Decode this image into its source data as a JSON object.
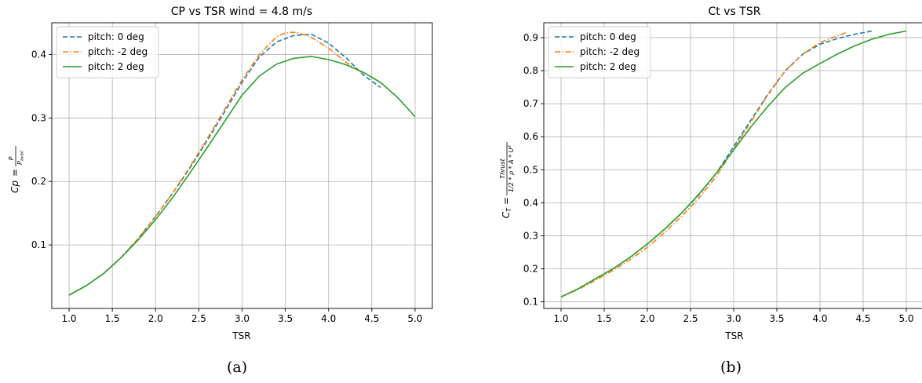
{
  "chart_data": [
    {
      "type": "line",
      "title": "CP vs TSR wind = 4.8 m/s",
      "xlabel": "TSR",
      "ylabel": "Cp = P / P_avail",
      "ylabel_lhs": "Cp",
      "ylabel_num": "P",
      "ylabel_den": "P",
      "ylabel_den_sub": "avail",
      "xlim": [
        0.8,
        5.2
      ],
      "ylim": [
        0.0,
        0.45
      ],
      "xticks": [
        1.0,
        1.5,
        2.0,
        2.5,
        3.0,
        3.5,
        4.0,
        4.5,
        5.0
      ],
      "xtick_labels": [
        "1.0",
        "1.5",
        "2.0",
        "2.5",
        "3.0",
        "3.5",
        "4.0",
        "4.5",
        "5.0"
      ],
      "yticks": [
        0.1,
        0.2,
        0.3,
        0.4
      ],
      "ytick_labels": [
        "0.1",
        "0.2",
        "0.3",
        "0.4"
      ],
      "grid": true,
      "legend_position": "top-left",
      "caption": "(a)",
      "series": [
        {
          "name": "pitch: 0 deg",
          "color": "#1f77b4",
          "style": "dashed",
          "x": [
            1.0,
            1.2,
            1.4,
            1.6,
            1.8,
            2.0,
            2.2,
            2.4,
            2.6,
            2.8,
            3.0,
            3.2,
            3.4,
            3.6,
            3.8,
            4.0,
            4.2,
            4.4,
            4.6
          ],
          "y": [
            0.021,
            0.036,
            0.055,
            0.08,
            0.11,
            0.145,
            0.182,
            0.222,
            0.265,
            0.31,
            0.356,
            0.396,
            0.42,
            0.43,
            0.432,
            0.418,
            0.395,
            0.368,
            0.348
          ]
        },
        {
          "name": "pitch: -2 deg",
          "color": "#ff7f0e",
          "style": "dashdot",
          "x": [
            1.0,
            1.2,
            1.4,
            1.6,
            1.8,
            2.0,
            2.2,
            2.4,
            2.6,
            2.8,
            3.0,
            3.2,
            3.4,
            3.5,
            3.6,
            3.7,
            3.8,
            4.0,
            4.2,
            4.4
          ],
          "y": [
            0.021,
            0.036,
            0.055,
            0.08,
            0.11,
            0.145,
            0.182,
            0.224,
            0.268,
            0.314,
            0.36,
            0.4,
            0.428,
            0.434,
            0.435,
            0.432,
            0.427,
            0.41,
            0.388,
            0.37
          ]
        },
        {
          "name": "pitch: 2 deg",
          "color": "#2ca02c",
          "style": "solid",
          "x": [
            1.0,
            1.2,
            1.4,
            1.6,
            1.8,
            2.0,
            2.2,
            2.4,
            2.6,
            2.8,
            3.0,
            3.2,
            3.4,
            3.6,
            3.8,
            4.0,
            4.2,
            4.4,
            4.6,
            4.8,
            5.0
          ],
          "y": [
            0.021,
            0.036,
            0.055,
            0.08,
            0.108,
            0.14,
            0.175,
            0.214,
            0.254,
            0.295,
            0.336,
            0.366,
            0.385,
            0.394,
            0.397,
            0.392,
            0.384,
            0.372,
            0.356,
            0.332,
            0.302
          ]
        }
      ]
    },
    {
      "type": "line",
      "title": "Ct vs TSR",
      "xlabel": "TSR",
      "ylabel": "C_T = Thrust / (1/2 * ρ * A * U^2)",
      "ylabel_lhs": "C",
      "ylabel_lhs_sub": "T",
      "ylabel_num": "Thrust",
      "ylabel_den": "1/2 * ρ * A * U",
      "ylabel_den_sup": "2",
      "xlim": [
        0.8,
        5.2
      ],
      "ylim": [
        0.08,
        0.945
      ],
      "xticks": [
        1.0,
        1.5,
        2.0,
        2.5,
        3.0,
        3.5,
        4.0,
        4.5,
        5.0
      ],
      "xtick_labels": [
        "1.0",
        "1.5",
        "2.0",
        "2.5",
        "3.0",
        "3.5",
        "4.0",
        "4.5",
        "5.0"
      ],
      "yticks": [
        0.1,
        0.2,
        0.3,
        0.4,
        0.5,
        0.6,
        0.7,
        0.8,
        0.9
      ],
      "ytick_labels": [
        "0.1",
        "0.2",
        "0.3",
        "0.4",
        "0.5",
        "0.6",
        "0.7",
        "0.8",
        "0.9"
      ],
      "grid": true,
      "legend_position": "top-left",
      "caption": "(b)",
      "series": [
        {
          "name": "pitch: 0 deg",
          "color": "#1f77b4",
          "style": "dashed",
          "x": [
            1.0,
            1.2,
            1.4,
            1.6,
            1.8,
            2.0,
            2.2,
            2.4,
            2.6,
            2.8,
            3.0,
            3.2,
            3.4,
            3.6,
            3.8,
            4.0,
            4.2,
            4.4,
            4.6
          ],
          "y": [
            0.115,
            0.14,
            0.17,
            0.2,
            0.235,
            0.275,
            0.32,
            0.37,
            0.425,
            0.49,
            0.57,
            0.65,
            0.73,
            0.8,
            0.85,
            0.88,
            0.897,
            0.91,
            0.92
          ]
        },
        {
          "name": "pitch: -2 deg",
          "color": "#ff7f0e",
          "style": "dashdot",
          "x": [
            1.0,
            1.2,
            1.4,
            1.6,
            1.8,
            2.0,
            2.2,
            2.4,
            2.6,
            2.8,
            3.0,
            3.2,
            3.4,
            3.6,
            3.8,
            4.0,
            4.2,
            4.3
          ],
          "y": [
            0.115,
            0.138,
            0.165,
            0.195,
            0.228,
            0.265,
            0.31,
            0.36,
            0.415,
            0.48,
            0.562,
            0.645,
            0.728,
            0.8,
            0.85,
            0.885,
            0.905,
            0.915
          ]
        },
        {
          "name": "pitch: 2 deg",
          "color": "#2ca02c",
          "style": "solid",
          "x": [
            1.0,
            1.2,
            1.4,
            1.6,
            1.8,
            2.0,
            2.2,
            2.4,
            2.6,
            2.8,
            3.0,
            3.2,
            3.4,
            3.6,
            3.8,
            4.0,
            4.2,
            4.4,
            4.6,
            4.8,
            5.0
          ],
          "y": [
            0.115,
            0.14,
            0.17,
            0.2,
            0.235,
            0.275,
            0.32,
            0.37,
            0.427,
            0.49,
            0.56,
            0.63,
            0.693,
            0.75,
            0.792,
            0.822,
            0.85,
            0.875,
            0.895,
            0.91,
            0.92
          ]
        }
      ]
    }
  ]
}
